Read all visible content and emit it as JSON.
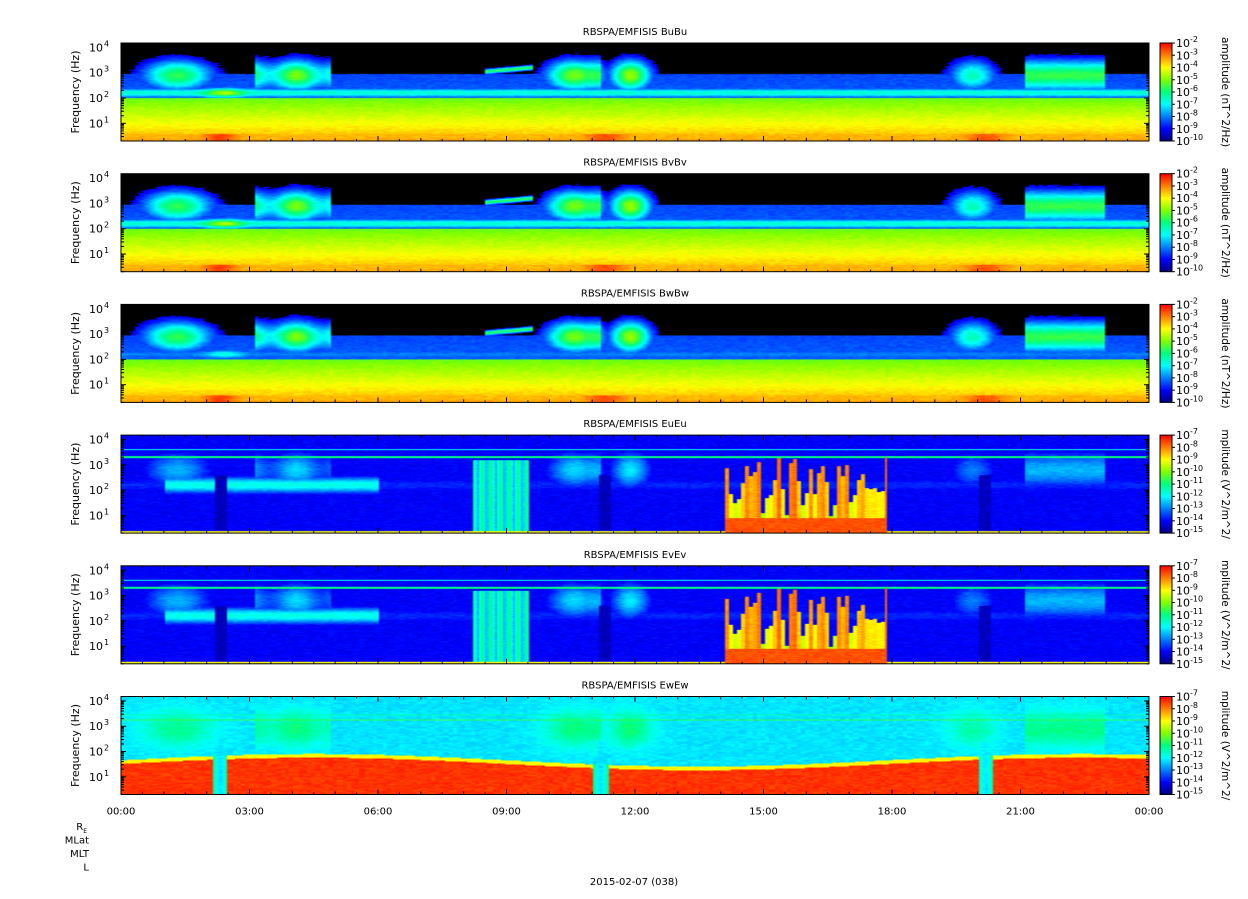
{
  "chart_data": {
    "type": "heatmap",
    "date_label": "2015-02-07 (038)",
    "orbit_labels": [
      "R_E",
      "MLat",
      "MLT",
      "L"
    ],
    "x_ticks": [
      "00:00",
      "03:00",
      "06:00",
      "09:00",
      "12:00",
      "15:00",
      "18:00",
      "21:00",
      "00:00"
    ],
    "x_range_hours": [
      0,
      24
    ],
    "y_scale": "log",
    "y_range_hz": [
      2,
      15000
    ],
    "y_ticks": [
      {
        "exp": 1,
        "value": 10,
        "label": "10"
      },
      {
        "exp": 2,
        "value": 100,
        "label": "10"
      },
      {
        "exp": 3,
        "value": 1000,
        "label": "10"
      },
      {
        "exp": 4,
        "value": 10000,
        "label": "10"
      }
    ],
    "ylabel": "Frequency (Hz)",
    "colormap": [
      "#00007f",
      "#0000ff",
      "#007fff",
      "#00ffff",
      "#00ff7f",
      "#7fff00",
      "#ffff00",
      "#ff7f00",
      "#ff0000"
    ],
    "panels": [
      {
        "id": "bubu",
        "kind": "B",
        "title": "RBSPA/EMFISIS  BuBu",
        "zlabel": "amplitude (nT^2/Hz)",
        "cbar_ticks": [
          -2,
          -3,
          -4,
          -5,
          -6,
          -7,
          -8,
          -9,
          -10
        ],
        "cbar_base": "10"
      },
      {
        "id": "bvbv",
        "kind": "B",
        "title": "RBSPA/EMFISIS  BvBv",
        "zlabel": "amplitude (nT^2/Hz)",
        "cbar_ticks": [
          -2,
          -3,
          -4,
          -5,
          -6,
          -7,
          -8,
          -9,
          -10
        ],
        "cbar_base": "10"
      },
      {
        "id": "bwbw",
        "kind": "Bw",
        "title": "RBSPA/EMFISIS  BwBw",
        "zlabel": "amplitude (nT^2/Hz)",
        "cbar_ticks": [
          -2,
          -3,
          -4,
          -5,
          -6,
          -7,
          -8,
          -9,
          -10
        ],
        "cbar_base": "10"
      },
      {
        "id": "eueu",
        "kind": "E",
        "title": "RBSPA/EMFISIS  EuEu",
        "zlabel": "mplitude (V^2/m^2/",
        "cbar_ticks": [
          -7,
          -8,
          -9,
          -10,
          -11,
          -12,
          -13,
          -14,
          -15
        ],
        "cbar_base": "10"
      },
      {
        "id": "evev",
        "kind": "E",
        "title": "RBSPA/EMFISIS  EvEv",
        "zlabel": "mplitude (V^2/m^2/",
        "cbar_ticks": [
          -7,
          -8,
          -9,
          -10,
          -11,
          -12,
          -13,
          -14,
          -15
        ],
        "cbar_base": "10"
      },
      {
        "id": "ewew",
        "kind": "Ew",
        "title": "RBSPA/EMFISIS  EwEw",
        "zlabel": "mplitude (V^2/m^2/",
        "cbar_ticks": [
          -7,
          -8,
          -9,
          -10,
          -11,
          -12,
          -13,
          -14,
          -15
        ],
        "cbar_base": "10"
      }
    ]
  }
}
